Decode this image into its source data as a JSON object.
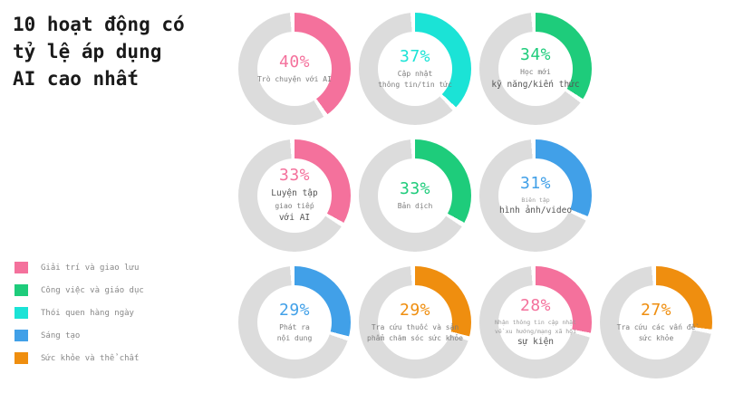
{
  "title": {
    "text": "10 hoạt động có\ntỷ lệ áp dụng\nAI cao nhất"
  },
  "palette": {
    "pink": "#F4719C",
    "green": "#1ECC7B",
    "cyan": "#1BE3D6",
    "blue": "#41A0E8",
    "orange": "#EF8E0F",
    "track": "#DCDCDC"
  },
  "legend": {
    "items": [
      {
        "label": "Giải trí và giao lưu",
        "color": "pink"
      },
      {
        "label": "Công việc và giáo dục",
        "color": "green"
      },
      {
        "label": "Thói quen hàng ngày",
        "color": "cyan"
      },
      {
        "label": "Sáng tạo",
        "color": "blue"
      },
      {
        "label": "Sức khỏe và thể chất",
        "color": "orange"
      }
    ]
  },
  "chart_data": {
    "type": "pie",
    "variant": "donut-small-multiples",
    "title": "10 hoạt động có tỷ lệ áp dụng AI cao nhất",
    "unit": "%",
    "legend_position": "bottom-left",
    "track_color": "#DCDCDC",
    "donuts": [
      {
        "row": 1,
        "value": 40,
        "value_label": "40%",
        "color": "pink",
        "category": "Giải trí và giao lưu",
        "activity": "Trò chuyện với AI",
        "label_lines": [
          {
            "text": "Trò chuyện với AI",
            "size": "sm"
          }
        ]
      },
      {
        "row": 1,
        "value": 37,
        "value_label": "37%",
        "color": "cyan",
        "category": "Thói quen hàng ngày",
        "activity": "Cập nhật thông tin/tin tức",
        "label_lines": [
          {
            "text": "Cập nhật",
            "size": "sm"
          },
          {
            "text": "thông tin/tin tức",
            "size": "sm"
          }
        ]
      },
      {
        "row": 1,
        "value": 34,
        "value_label": "34%",
        "color": "green",
        "category": "Công việc và giáo dục",
        "activity": "Học mới kỹ năng/kiến thức",
        "label_lines": [
          {
            "text": "Học mới",
            "size": "sm"
          },
          {
            "text": "kỹ năng/kiến thức",
            "size": "md"
          }
        ]
      },
      {
        "row": 2,
        "value": 33,
        "value_label": "33%",
        "color": "pink",
        "category": "Giải trí và giao lưu",
        "activity": "Luyện tập giao tiếp với AI",
        "label_lines": [
          {
            "text": "Luyện tập",
            "size": "md"
          },
          {
            "text": "giao tiếp",
            "size": "sm"
          },
          {
            "text": "với AI",
            "size": "md"
          }
        ]
      },
      {
        "row": 2,
        "value": 33,
        "value_label": "33%",
        "color": "green",
        "category": "Công việc và giáo dục",
        "activity": "Bản dịch",
        "label_lines": [
          {
            "text": "Bản dịch",
            "size": "sm"
          }
        ]
      },
      {
        "row": 2,
        "value": 31,
        "value_label": "31%",
        "color": "blue",
        "category": "Sáng tạo",
        "activity": "Biên tập hình ảnh/video",
        "label_lines": [
          {
            "text": "Biên tập",
            "size": "xs"
          },
          {
            "text": "hình ảnh/video",
            "size": "md"
          }
        ]
      },
      {
        "row": 3,
        "value": 29,
        "value_label": "29%",
        "color": "blue",
        "category": "Sáng tạo",
        "activity": "Phát ra nội dung",
        "label_lines": [
          {
            "text": "Phát ra",
            "size": "sm"
          },
          {
            "text": "nội dung",
            "size": "sm"
          }
        ]
      },
      {
        "row": 3,
        "value": 29,
        "value_label": "29%",
        "color": "orange",
        "category": "Sức khỏe và thể chất",
        "activity": "Tra cứu thuốc và sản phẩm chăm sóc sức khỏe",
        "label_lines": [
          {
            "text": "Tra cứu thuốc và sản",
            "size": "sm"
          },
          {
            "text": "phẩm chăm sóc sức khỏe",
            "size": "sm"
          }
        ]
      },
      {
        "row": 3,
        "value": 28,
        "value_label": "28%",
        "color": "pink",
        "category": "Giải trí và giao lưu",
        "activity": "Nhận thông tin cập nhật về xu hướng/mạng xã hội sự kiện",
        "label_lines": [
          {
            "text": "Nhận thông tin cập nhật",
            "size": "xs"
          },
          {
            "text": "về xu hướng/mạng xã hội",
            "size": "xs"
          },
          {
            "text": "sự kiện",
            "size": "md"
          }
        ]
      },
      {
        "row": 3,
        "value": 27,
        "value_label": "27%",
        "color": "orange",
        "category": "Sức khỏe và thể chất",
        "activity": "Tra cứu các vấn đề sức khỏe",
        "label_lines": [
          {
            "text": "Tra cứu các vấn đề",
            "size": "sm"
          },
          {
            "text": "sức khỏe",
            "size": "sm"
          }
        ]
      }
    ]
  }
}
